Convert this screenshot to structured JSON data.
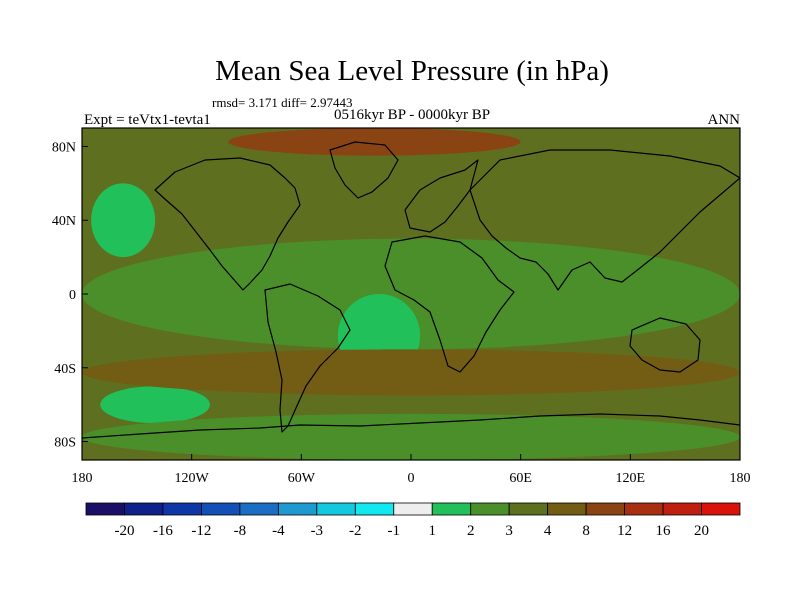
{
  "chart_data": {
    "type": "heatmap",
    "title": "Mean Sea Level Pressure (in hPa)",
    "stats_line": "rmsd= 3.171 diff= 2.97443",
    "subtitle": "0516kyr BP - 0000kyr BP",
    "left_label": "Expt = teVtx1-tevta1",
    "right_label": "ANN",
    "x_range": [
      -180,
      180
    ],
    "y_range": [
      -90,
      90
    ],
    "x_ticks": [
      {
        "value": -180,
        "label": "180"
      },
      {
        "value": -120,
        "label": "120W"
      },
      {
        "value": -60,
        "label": "60W"
      },
      {
        "value": 0,
        "label": "0"
      },
      {
        "value": 60,
        "label": "60E"
      },
      {
        "value": 120,
        "label": "120E"
      },
      {
        "value": 180,
        "label": "180"
      }
    ],
    "y_ticks": [
      {
        "value": 80,
        "label": "80N"
      },
      {
        "value": 40,
        "label": "40N"
      },
      {
        "value": 0,
        "label": "0"
      },
      {
        "value": -40,
        "label": "40S"
      },
      {
        "value": -80,
        "label": "80S"
      }
    ],
    "colorbar": {
      "levels": [
        "-20",
        "-16",
        "-12",
        "-8",
        "-4",
        "-3",
        "-2",
        "-1",
        "1",
        "2",
        "3",
        "4",
        "8",
        "12",
        "16",
        "20"
      ],
      "colors": [
        "#1a0f66",
        "#0f1f8c",
        "#0f36a6",
        "#1250b8",
        "#1c6ec4",
        "#1e9ad0",
        "#14c8e0",
        "#12e8f0",
        "#eeeeee",
        "#22c05a",
        "#4a8f2a",
        "#5e7020",
        "#735c14",
        "#8a4414",
        "#a83010",
        "#c01e0e",
        "#d9120c"
      ]
    },
    "regions": [
      {
        "name": "background",
        "color_index": 11,
        "lon": [
          -180,
          180
        ],
        "lat": [
          -90,
          90
        ]
      },
      {
        "name": "north-polar-high",
        "color_index": 13,
        "lon": [
          -100,
          60
        ],
        "lat": [
          75,
          90
        ]
      },
      {
        "name": "tropical-band",
        "color_index": 10,
        "lon": [
          -180,
          180
        ],
        "lat": [
          -30,
          30
        ]
      },
      {
        "name": "north-pacific-anomaly",
        "color_index": 9,
        "lon": [
          -175,
          -140
        ],
        "lat": [
          20,
          60
        ]
      },
      {
        "name": "south-atlantic-anomaly",
        "color_index": 9,
        "lon": [
          -40,
          5
        ],
        "lat": [
          -45,
          0
        ]
      },
      {
        "name": "south-pacific-anomaly",
        "color_index": 9,
        "lon": [
          -170,
          -110
        ],
        "lat": [
          -70,
          -50
        ]
      },
      {
        "name": "southern-ocean-band",
        "color_index": 12,
        "lon": [
          -180,
          180
        ],
        "lat": [
          -55,
          -30
        ]
      },
      {
        "name": "antarctic-coast",
        "color_index": 10,
        "lon": [
          -180,
          180
        ],
        "lat": [
          -90,
          -65
        ]
      }
    ]
  }
}
